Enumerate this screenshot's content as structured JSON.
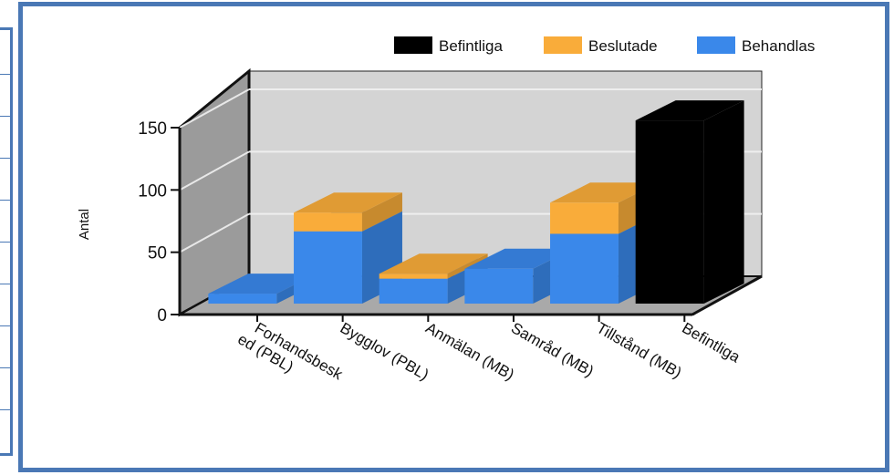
{
  "chart_data": {
    "type": "bar",
    "stacked": true,
    "three_d": true,
    "title": "",
    "xlabel": "",
    "ylabel": "Antal",
    "ylim": [
      0,
      150
    ],
    "yticks": [
      0,
      50,
      100,
      150
    ],
    "categories": [
      "Forhandsbesked (PBL)",
      "Bygglov (PBL)",
      "Anmälan (MB)",
      "Samråd (MB)",
      "Tillstånd (MB)",
      "Befintliga"
    ],
    "category_label_lines": [
      [
        "Forhandsbesk",
        "ed (PBL)"
      ],
      [
        "Bygglov (PBL)"
      ],
      [
        "Anmälan (MB)"
      ],
      [
        "Samråd (MB)"
      ],
      [
        "Tillstånd (MB)"
      ],
      [
        "Befintliga"
      ]
    ],
    "series": [
      {
        "name": "Befintliga",
        "color": "#000000",
        "values": [
          0,
          0,
          0,
          0,
          0,
          147
        ]
      },
      {
        "name": "Beslutade",
        "color": "#f9ac3a",
        "values": [
          0,
          15,
          4,
          0,
          25,
          0
        ]
      },
      {
        "name": "Behandlas",
        "color": "#3a88ea",
        "values": [
          8,
          58,
          20,
          28,
          56,
          0
        ]
      }
    ],
    "stack_order": [
      "Behandlas",
      "Beslutade",
      "Befintliga"
    ],
    "legend_position": "top-right",
    "grid": true
  }
}
